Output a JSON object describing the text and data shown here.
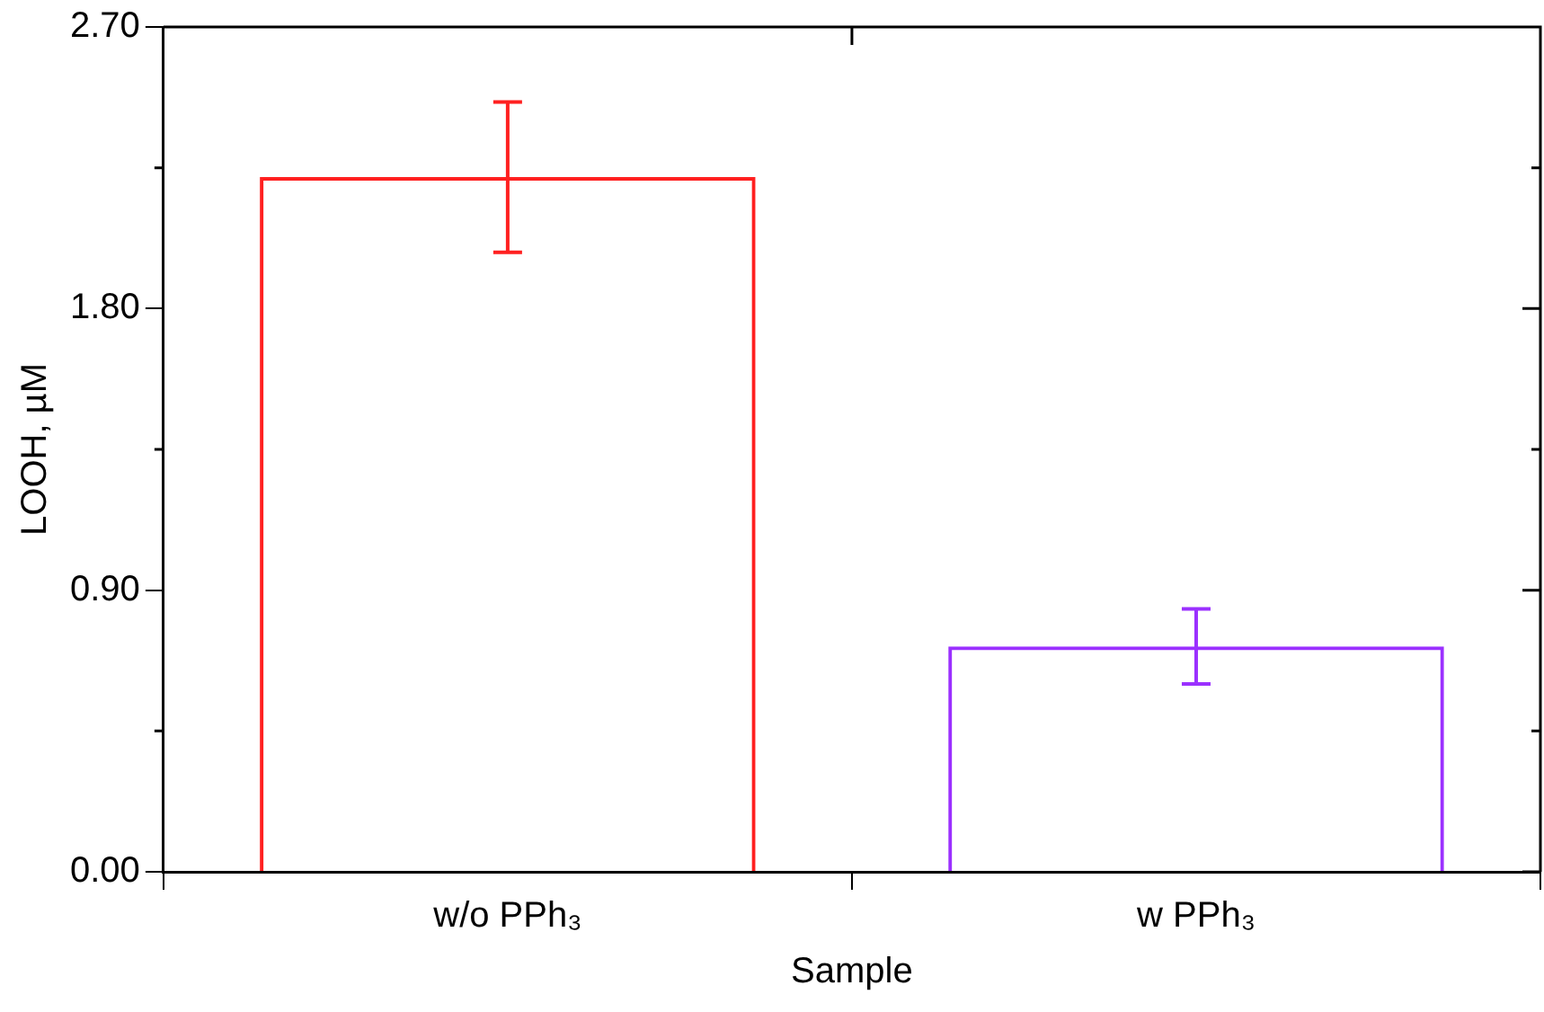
{
  "chart_data": {
    "type": "bar",
    "xlabel": "Sample",
    "ylabel": "LOOH, µM",
    "categories": [
      "w/o PPh₃",
      "w PPh₃"
    ],
    "values": [
      2.22,
      0.72
    ],
    "colors": [
      "#ff2020",
      "#9b30ff"
    ],
    "errors": [
      0.24,
      0.12
    ],
    "ylim": [
      0,
      2.7
    ],
    "yticks": [
      {
        "value": 0,
        "label": "0.00"
      },
      {
        "value": 0.9,
        "label": "0.90"
      },
      {
        "value": 1.8,
        "label": "1.80"
      },
      {
        "value": 2.7,
        "label": "2.70"
      }
    ],
    "grid": false,
    "legend": false
  }
}
